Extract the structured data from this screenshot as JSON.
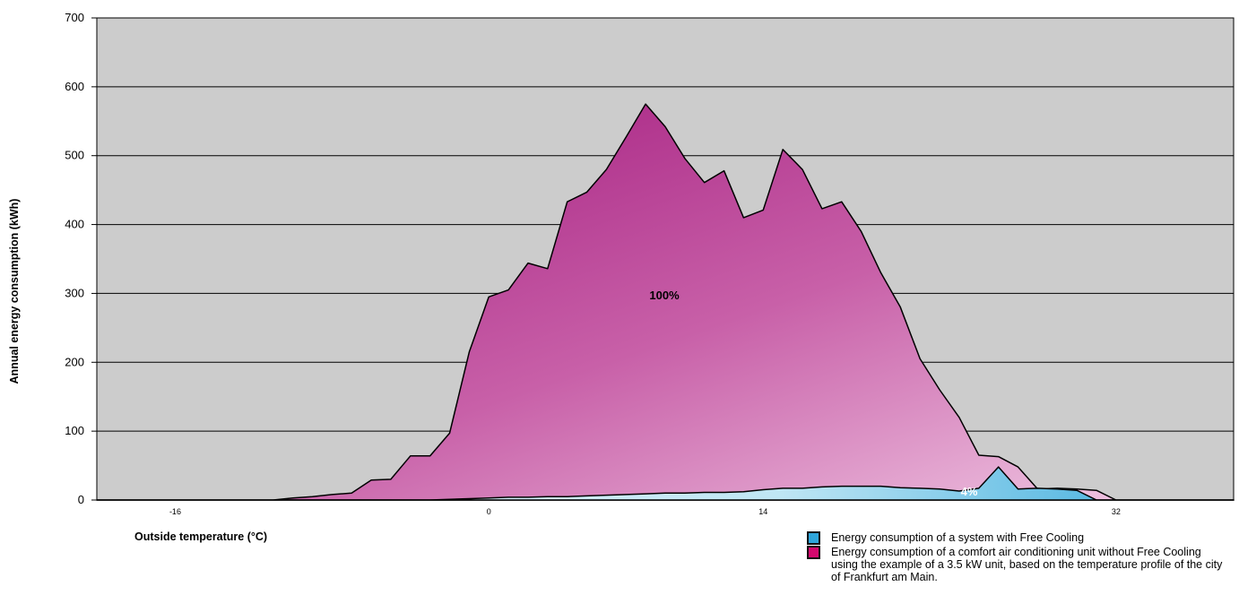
{
  "chart_data": {
    "type": "area",
    "ylabel": "Annual energy consumption (kWh)",
    "xlabel": "Outside temperature (°C)",
    "ylim": [
      0,
      700
    ],
    "yticks": [
      0,
      100,
      200,
      300,
      400,
      500,
      600,
      700
    ],
    "xlim": [
      -20,
      38
    ],
    "xticks": [
      -16,
      0,
      14,
      32
    ],
    "grid": "horizontal",
    "x": [
      -20,
      -19,
      -18,
      -17,
      -16,
      -15,
      -14,
      -13,
      -12,
      -11,
      -10,
      -9,
      -8,
      -7,
      -6,
      -5,
      -4,
      -3,
      -2,
      -1,
      0,
      1,
      2,
      3,
      4,
      5,
      6,
      7,
      8,
      9,
      10,
      11,
      12,
      13,
      14,
      15,
      16,
      17,
      18,
      19,
      20,
      21,
      22,
      23,
      24,
      25,
      26,
      27,
      28,
      29,
      30,
      31,
      32,
      33,
      34,
      35,
      36,
      37,
      38
    ],
    "series": [
      {
        "name": "Energy consumption of a comfort air conditioning unit without Free Cooling using the example of a 3.5 kW unit, based on the temperature profile of the city of Frankfurt am Main.",
        "color": "#a81a82",
        "color_light": "#e8b4d8",
        "annotation": "100%",
        "values": [
          0,
          0,
          0,
          0,
          0,
          0,
          0,
          0,
          0,
          0,
          3,
          5,
          8,
          10,
          29,
          30,
          64,
          64,
          97,
          215,
          295,
          305,
          344,
          336,
          433,
          447,
          480,
          527,
          575,
          542,
          496,
          461,
          478,
          410,
          421,
          509,
          480,
          423,
          433,
          390,
          330,
          280,
          205,
          160,
          120,
          65,
          63,
          48,
          16,
          17,
          16,
          14,
          0,
          0,
          0,
          0,
          0,
          0,
          0
        ]
      },
      {
        "name": "Energy consumption of a system with Free Cooling",
        "color": "#3ab0e0",
        "color_light": "#d8f0f8",
        "annotation": "4%",
        "values": [
          0,
          0,
          0,
          0,
          0,
          0,
          0,
          0,
          0,
          0,
          0,
          0,
          0,
          0,
          0,
          0,
          0,
          0,
          1,
          2,
          3,
          4,
          4,
          5,
          5,
          6,
          7,
          8,
          9,
          10,
          10,
          11,
          11,
          12,
          15,
          17,
          17,
          19,
          20,
          20,
          20,
          18,
          17,
          16,
          13,
          17,
          48,
          16,
          17,
          16,
          14,
          0,
          0,
          0,
          0,
          0,
          0,
          0,
          0
        ]
      }
    ]
  }
}
